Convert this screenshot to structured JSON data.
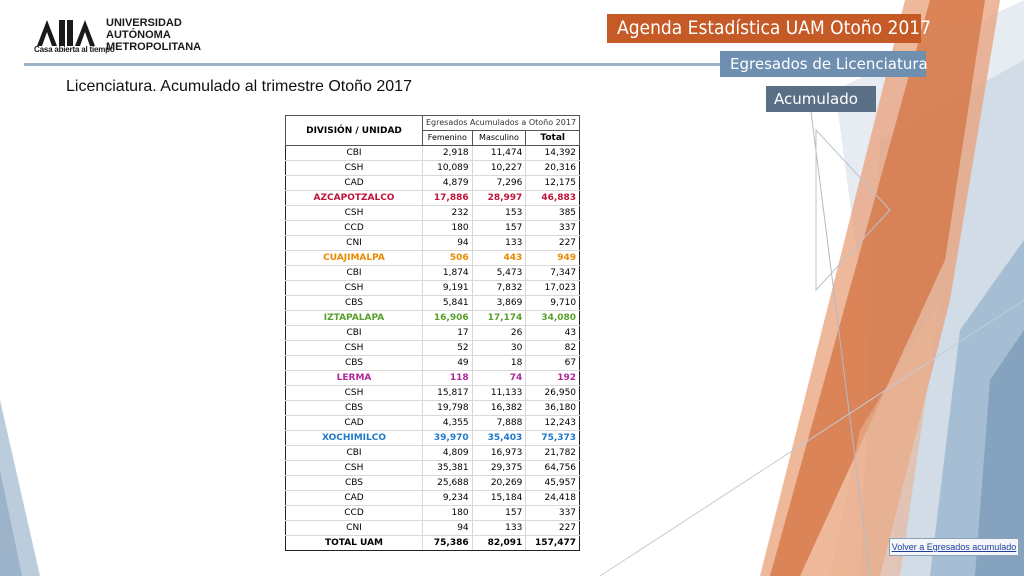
{
  "logo": {
    "line1": "UNIVERSIDAD",
    "line2": "AUTÓNOMA",
    "line3": "METROPOLITANA",
    "tagline": "Casa abierta al tiempo"
  },
  "banners": {
    "main": "Agenda Estadística UAM  Otoño 2017",
    "sub1": "Egresados de Licenciatura",
    "sub2": "Acumulado"
  },
  "subtitle": "Licenciatura. Acumulado al trimestre Otoño 2017",
  "table": {
    "unit_header": "DIVISIÓN / UNIDAD",
    "group_header": "Egresados Acumulados a Otoño 2017",
    "col_female": "Femenino",
    "col_male": "Masculino",
    "col_total": "Total",
    "rows": [
      {
        "unit": "CBI",
        "f": "2,918",
        "m": "11,474",
        "t": "14,392"
      },
      {
        "unit": "CSH",
        "f": "10,089",
        "m": "10,227",
        "t": "20,316"
      },
      {
        "unit": "CAD",
        "f": "4,879",
        "m": "7,296",
        "t": "12,175"
      },
      {
        "unit": "AZCAPOTZALCO",
        "f": "17,886",
        "m": "28,997",
        "t": "46,883",
        "subtotal": true,
        "color": "#c0143c"
      },
      {
        "unit": "CSH",
        "f": "232",
        "m": "153",
        "t": "385"
      },
      {
        "unit": "CCD",
        "f": "180",
        "m": "157",
        "t": "337"
      },
      {
        "unit": "CNI",
        "f": "94",
        "m": "133",
        "t": "227"
      },
      {
        "unit": "CUAJIMALPA",
        "f": "506",
        "m": "443",
        "t": "949",
        "subtotal": true,
        "color": "#e88a00"
      },
      {
        "unit": "CBI",
        "f": "1,874",
        "m": "5,473",
        "t": "7,347"
      },
      {
        "unit": "CSH",
        "f": "9,191",
        "m": "7,832",
        "t": "17,023"
      },
      {
        "unit": "CBS",
        "f": "5,841",
        "m": "3,869",
        "t": "9,710"
      },
      {
        "unit": "IZTAPALAPA",
        "f": "16,906",
        "m": "17,174",
        "t": "34,080",
        "subtotal": true,
        "color": "#5aa02c"
      },
      {
        "unit": "CBI",
        "f": "17",
        "m": "26",
        "t": "43"
      },
      {
        "unit": "CSH",
        "f": "52",
        "m": "30",
        "t": "82"
      },
      {
        "unit": "CBS",
        "f": "49",
        "m": "18",
        "t": "67"
      },
      {
        "unit": "LERMA",
        "f": "118",
        "m": "74",
        "t": "192",
        "subtotal": true,
        "color": "#b0279b"
      },
      {
        "unit": "CSH",
        "f": "15,817",
        "m": "11,133",
        "t": "26,950"
      },
      {
        "unit": "CBS",
        "f": "19,798",
        "m": "16,382",
        "t": "36,180"
      },
      {
        "unit": "CAD",
        "f": "4,355",
        "m": "7,888",
        "t": "12,243"
      },
      {
        "unit": "XOCHIMILCO",
        "f": "39,970",
        "m": "35,403",
        "t": "75,373",
        "subtotal": true,
        "color": "#1f78c8"
      },
      {
        "unit": "CBI",
        "f": "4,809",
        "m": "16,973",
        "t": "21,782"
      },
      {
        "unit": "CSH",
        "f": "35,381",
        "m": "29,375",
        "t": "64,756"
      },
      {
        "unit": "CBS",
        "f": "25,688",
        "m": "20,269",
        "t": "45,957"
      },
      {
        "unit": "CAD",
        "f": "9,234",
        "m": "15,184",
        "t": "24,418"
      },
      {
        "unit": "CCD",
        "f": "180",
        "m": "157",
        "t": "337"
      },
      {
        "unit": "CNI",
        "f": "94",
        "m": "133",
        "t": "227"
      }
    ],
    "total": {
      "unit": "TOTAL UAM",
      "f": "75,386",
      "m": "82,091",
      "t": "157,477"
    }
  },
  "back_link": "Volver a Egresados acumulado",
  "colors": {
    "accent_orange": "#c55a27",
    "accent_blue": "#6e8fb0",
    "accent_slate": "#5a6f86"
  }
}
